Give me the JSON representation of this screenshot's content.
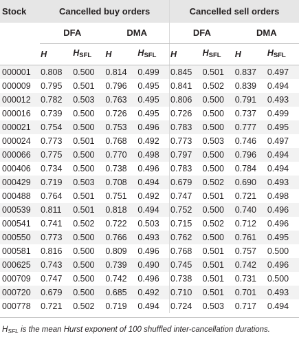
{
  "table": {
    "stock_header": "Stock",
    "group_buy": "Cancelled buy orders",
    "group_sell": "Cancelled sell orders",
    "method_dfa": "DFA",
    "method_dma": "DMA",
    "col_h": "H",
    "col_hsfl_main": "H",
    "col_hsfl_sub": "SFL",
    "rows": [
      {
        "stock": "000001",
        "v": [
          "0.808",
          "0.500",
          "0.814",
          "0.499",
          "0.845",
          "0.501",
          "0.837",
          "0.497"
        ]
      },
      {
        "stock": "000009",
        "v": [
          "0.795",
          "0.501",
          "0.796",
          "0.495",
          "0.841",
          "0.502",
          "0.839",
          "0.494"
        ]
      },
      {
        "stock": "000012",
        "v": [
          "0.782",
          "0.503",
          "0.763",
          "0.495",
          "0.806",
          "0.500",
          "0.791",
          "0.493"
        ]
      },
      {
        "stock": "000016",
        "v": [
          "0.739",
          "0.500",
          "0.726",
          "0.495",
          "0.726",
          "0.500",
          "0.737",
          "0.499"
        ]
      },
      {
        "stock": "000021",
        "v": [
          "0.754",
          "0.500",
          "0.753",
          "0.496",
          "0.783",
          "0.500",
          "0.777",
          "0.495"
        ]
      },
      {
        "stock": "000024",
        "v": [
          "0.773",
          "0.501",
          "0.768",
          "0.492",
          "0.773",
          "0.503",
          "0.746",
          "0.497"
        ]
      },
      {
        "stock": "000066",
        "v": [
          "0.775",
          "0.500",
          "0.770",
          "0.498",
          "0.797",
          "0.500",
          "0.796",
          "0.494"
        ]
      },
      {
        "stock": "000406",
        "v": [
          "0.734",
          "0.500",
          "0.738",
          "0.496",
          "0.783",
          "0.500",
          "0.784",
          "0.494"
        ]
      },
      {
        "stock": "000429",
        "v": [
          "0.719",
          "0.503",
          "0.708",
          "0.494",
          "0.679",
          "0.502",
          "0.690",
          "0.493"
        ]
      },
      {
        "stock": "000488",
        "v": [
          "0.764",
          "0.501",
          "0.751",
          "0.492",
          "0.747",
          "0.501",
          "0.721",
          "0.498"
        ]
      },
      {
        "stock": "000539",
        "v": [
          "0.811",
          "0.501",
          "0.818",
          "0.494",
          "0.752",
          "0.500",
          "0.740",
          "0.496"
        ]
      },
      {
        "stock": "000541",
        "v": [
          "0.741",
          "0.502",
          "0.722",
          "0.503",
          "0.715",
          "0.502",
          "0.712",
          "0.496"
        ]
      },
      {
        "stock": "000550",
        "v": [
          "0.773",
          "0.500",
          "0.766",
          "0.493",
          "0.762",
          "0.500",
          "0.761",
          "0.495"
        ]
      },
      {
        "stock": "000581",
        "v": [
          "0.816",
          "0.500",
          "0.809",
          "0.496",
          "0.768",
          "0.501",
          "0.757",
          "0.500"
        ]
      },
      {
        "stock": "000625",
        "v": [
          "0.743",
          "0.500",
          "0.739",
          "0.490",
          "0.745",
          "0.501",
          "0.742",
          "0.496"
        ]
      },
      {
        "stock": "000709",
        "v": [
          "0.747",
          "0.500",
          "0.742",
          "0.496",
          "0.738",
          "0.501",
          "0.731",
          "0.500"
        ]
      },
      {
        "stock": "000720",
        "v": [
          "0.679",
          "0.500",
          "0.685",
          "0.492",
          "0.710",
          "0.501",
          "0.701",
          "0.493"
        ]
      },
      {
        "stock": "000778",
        "v": [
          "0.721",
          "0.502",
          "0.719",
          "0.494",
          "0.724",
          "0.503",
          "0.717",
          "0.494"
        ]
      }
    ]
  },
  "footnote": {
    "symbol_main": "H",
    "symbol_sub": "SFL",
    "text": " is the mean Hurst exponent of 100 shuffled inter-cancellation durations."
  }
}
